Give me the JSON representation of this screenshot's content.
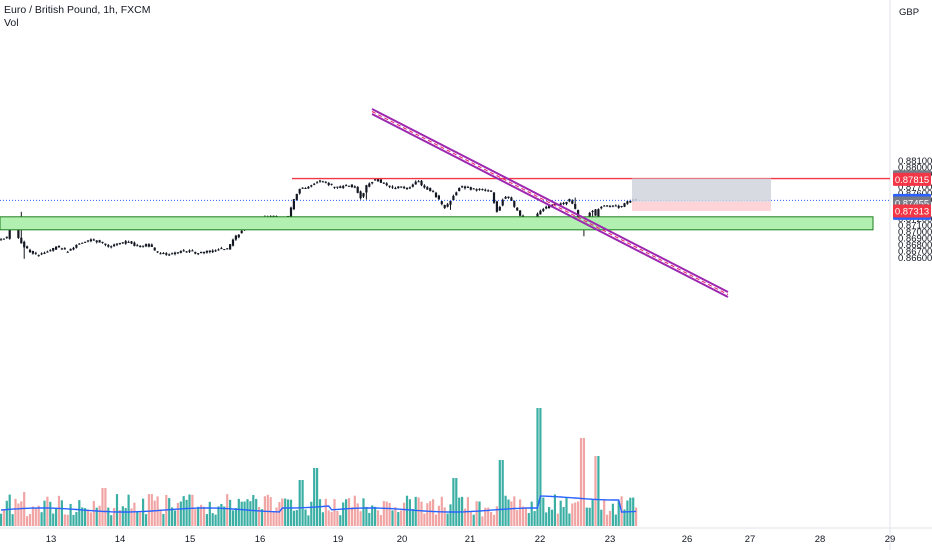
{
  "header": {
    "title": "Euro / British Pound, 1h, FXCM",
    "volume_label": "Vol"
  },
  "chart_data": {
    "type": "candlestick",
    "symbol": "EUR/GBP",
    "timeframe": "1h",
    "exchange": "FXCM",
    "currency_label": "GBP",
    "price_ticks": [
      "0.88100",
      "0.88000",
      "0.87900",
      "0.87700",
      "0.87600",
      "0.87500",
      "0.87200",
      "0.87100",
      "0.87000",
      "0.86900",
      "0.86800",
      "0.86700",
      "0.86600"
    ],
    "time_ticks": [
      "13",
      "14",
      "15",
      "16",
      "19",
      "20",
      "21",
      "22",
      "23",
      "26",
      "27",
      "28",
      "29"
    ],
    "price_range": [
      0.8654,
      0.8823
    ],
    "tags": {
      "target": "0.87816",
      "resistance": "0.87815",
      "current": "0.87477",
      "countdown": "36:58",
      "entry": "0.87455",
      "stop": "0.87313"
    },
    "levels": {
      "resistance": 0.87815,
      "current": 0.87477,
      "entry": 0.87455,
      "stop": 0.87313,
      "target": 0.87816
    },
    "support_zone": [
      0.8712,
      0.8716
    ],
    "trendline": {
      "from": [
        "19.6",
        0.8789
      ],
      "to": [
        "26.6",
        0.8732
      ]
    },
    "position": {
      "entry": 0.87455,
      "target": 0.87816,
      "stop": 0.87313
    },
    "series": [
      {
        "name": "Vol",
        "kind": "volume_ma"
      }
    ],
    "colors": {
      "up": "#26a69a",
      "down": "#ef5350",
      "resistance": "#f23645",
      "support_fill": "#b2f0b2",
      "support_border": "#1e7d1e",
      "trendline": "#9c27b0",
      "profit_zone": "#d1d4dc",
      "loss_zone": "#ffcdd2",
      "current_tag": "#2962ff",
      "entry_tag": "#787b86",
      "stop_tag": "#f23645",
      "volume_ma": "#2962ff",
      "grid": "#ffffff"
    }
  }
}
